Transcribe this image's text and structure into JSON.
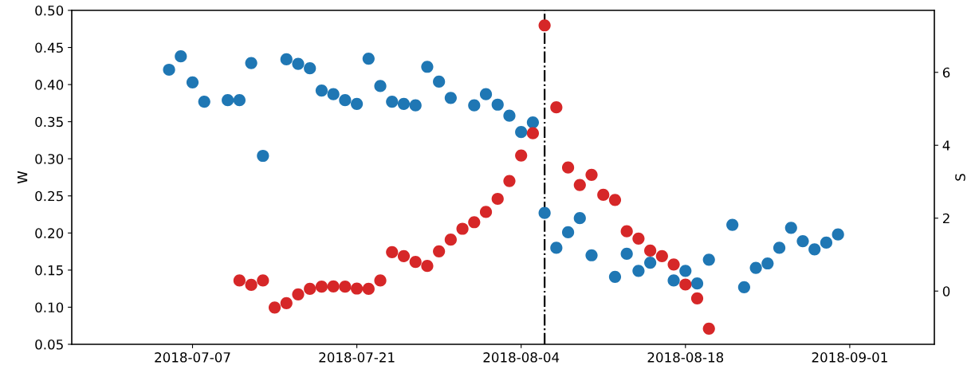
{
  "chart_data": {
    "type": "scatter",
    "xlabel": null,
    "ylabel": "W",
    "y2label": "S",
    "xlim": [
      "2018-06-26T17:00",
      "2018-09-08T05:00"
    ],
    "xticks": [
      "2018-07-07",
      "2018-07-21",
      "2018-08-04",
      "2018-08-18",
      "2018-09-01"
    ],
    "ylim": [
      0.05,
      0.5
    ],
    "yticks": [
      {
        "value": 0.05,
        "label": "0.05"
      },
      {
        "value": 0.1,
        "label": "0.10"
      },
      {
        "value": 0.15,
        "label": "0.15"
      },
      {
        "value": 0.2,
        "label": "0.20"
      },
      {
        "value": 0.25,
        "label": "0.25"
      },
      {
        "value": 0.3,
        "label": "0.30"
      },
      {
        "value": 0.35,
        "label": "0.35"
      },
      {
        "value": 0.4,
        "label": "0.40"
      },
      {
        "value": 0.45,
        "label": "0.45"
      },
      {
        "value": 0.5,
        "label": "0.50"
      }
    ],
    "y2lim": [
      -1.46,
      7.7
    ],
    "y2ticks": [
      0,
      2,
      4,
      6
    ],
    "marker": "circle",
    "grid": false,
    "ref_lines": [
      {
        "axis": "x",
        "value": "2018-08-06",
        "color": "#000000",
        "line_style": "dashdot"
      }
    ],
    "series": [
      {
        "color": "#1f77b4",
        "x": [
          "2018-07-05",
          "2018-07-06",
          "2018-07-07",
          "2018-07-08",
          "2018-07-10",
          "2018-07-11",
          "2018-07-12",
          "2018-07-13",
          "2018-07-15",
          "2018-07-16",
          "2018-07-17",
          "2018-07-18",
          "2018-07-19",
          "2018-07-20",
          "2018-07-21",
          "2018-07-22",
          "2018-07-23",
          "2018-07-24",
          "2018-07-25",
          "2018-07-26",
          "2018-07-27",
          "2018-07-28",
          "2018-07-29",
          "2018-07-31",
          "2018-08-01",
          "2018-08-02",
          "2018-08-03",
          "2018-08-04",
          "2018-08-05",
          "2018-08-06",
          "2018-08-07",
          "2018-08-08",
          "2018-08-09",
          "2018-08-10",
          "2018-08-12",
          "2018-08-13",
          "2018-08-14",
          "2018-08-15",
          "2018-08-17",
          "2018-08-18",
          "2018-08-19",
          "2018-08-20",
          "2018-08-22",
          "2018-08-23",
          "2018-08-24",
          "2018-08-25",
          "2018-08-26",
          "2018-08-27",
          "2018-08-28",
          "2018-08-29",
          "2018-08-30",
          "2018-08-31"
        ],
        "values": [
          0.42,
          0.438,
          0.403,
          0.377,
          0.379,
          0.379,
          0.429,
          0.304,
          0.434,
          0.428,
          0.422,
          0.392,
          0.387,
          0.379,
          0.374,
          0.435,
          0.398,
          0.377,
          0.374,
          0.372,
          0.424,
          0.404,
          0.382,
          0.372,
          0.387,
          0.373,
          0.358,
          0.336,
          0.349,
          0.227,
          0.18,
          0.201,
          0.22,
          0.17,
          0.141,
          0.172,
          0.149,
          0.16,
          0.136,
          0.149,
          0.132,
          0.164,
          0.211,
          0.127,
          0.153,
          0.159,
          0.18,
          0.207,
          0.189,
          0.178,
          0.187,
          0.198
        ]
      },
      {
        "color": "#d62728",
        "axis": "y2",
        "x": [
          "2018-07-11",
          "2018-07-12",
          "2018-07-13",
          "2018-07-14",
          "2018-07-15",
          "2018-07-16",
          "2018-07-17",
          "2018-07-18",
          "2018-07-19",
          "2018-07-20",
          "2018-07-21",
          "2018-07-22",
          "2018-07-23",
          "2018-07-24",
          "2018-07-25",
          "2018-07-26",
          "2018-07-27",
          "2018-07-28",
          "2018-07-29",
          "2018-07-30",
          "2018-07-31",
          "2018-08-01",
          "2018-08-02",
          "2018-08-03",
          "2018-08-04",
          "2018-08-05",
          "2018-08-06",
          "2018-08-07",
          "2018-08-08",
          "2018-08-09",
          "2018-08-10",
          "2018-08-11",
          "2018-08-12",
          "2018-08-13",
          "2018-08-14",
          "2018-08-15",
          "2018-08-16",
          "2018-08-17",
          "2018-08-18",
          "2018-08-19",
          "2018-08-20"
        ],
        "values": [
          0.29,
          0.17,
          0.29,
          -0.45,
          -0.33,
          -0.09,
          0.06,
          0.12,
          0.13,
          0.12,
          0.07,
          0.06,
          0.29,
          1.07,
          0.96,
          0.8,
          0.69,
          1.09,
          1.41,
          1.71,
          1.89,
          2.17,
          2.53,
          3.02,
          3.72,
          4.33,
          7.29,
          5.04,
          3.39,
          2.91,
          3.19,
          2.64,
          2.5,
          1.64,
          1.44,
          1.11,
          0.96,
          0.73,
          0.18,
          -0.2,
          -1.03
        ]
      }
    ]
  }
}
